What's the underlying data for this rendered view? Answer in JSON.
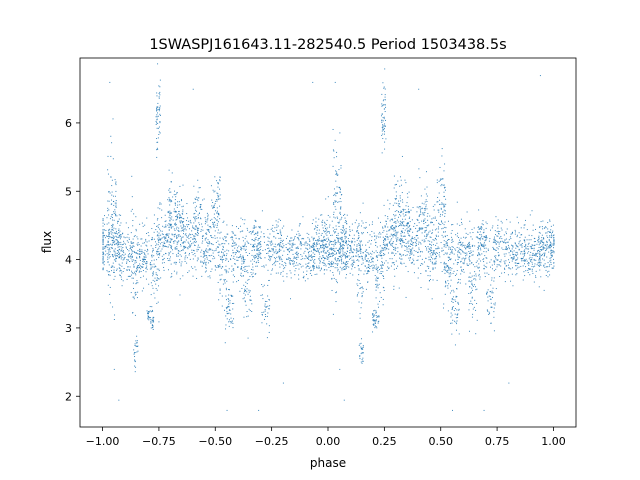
{
  "chart_data": {
    "type": "scatter",
    "title": "1SWASPJ161643.11-282540.5 Period 1503438.5s",
    "xlabel": "phase",
    "ylabel": "flux",
    "xlim": [
      -1.1,
      1.1
    ],
    "ylim": [
      1.55,
      6.95
    ],
    "xticks": [
      -1.0,
      -0.75,
      -0.5,
      -0.25,
      0.0,
      0.25,
      0.5,
      0.75,
      1.0
    ],
    "xtick_labels": [
      "−1.00",
      "−0.75",
      "−0.50",
      "−0.25",
      "0.00",
      "0.25",
      "0.50",
      "0.75",
      "1.00"
    ],
    "yticks": [
      2,
      3,
      4,
      5,
      6
    ],
    "ytick_labels": [
      "2",
      "3",
      "4",
      "5",
      "6"
    ],
    "grid": false,
    "marker_color": "#1f77b4",
    "series": [
      {
        "name": "",
        "note_periodic": true,
        "clusters": [
          {
            "phase": -1.0,
            "width": 0.03,
            "center": 4.2,
            "spread": 0.35,
            "n": 90
          },
          {
            "phase": -0.96,
            "width": 0.02,
            "center": 4.6,
            "spread": 0.9,
            "n": 110
          },
          {
            "phase": -0.94,
            "width": 0.02,
            "center": 4.3,
            "spread": 0.35,
            "n": 70
          },
          {
            "phase": -0.9,
            "width": 0.03,
            "center": 4.1,
            "spread": 0.3,
            "n": 60
          },
          {
            "phase": -0.86,
            "width": 0.015,
            "center": 4.0,
            "spread": 0.6,
            "n": 70
          },
          {
            "phase": -0.855,
            "width": 0.01,
            "center": 2.65,
            "spread": 0.15,
            "n": 25
          },
          {
            "phase": -0.82,
            "width": 0.02,
            "center": 4.0,
            "spread": 0.25,
            "n": 50
          },
          {
            "phase": -0.79,
            "width": 0.015,
            "center": 3.15,
            "spread": 0.15,
            "n": 40
          },
          {
            "phase": -0.77,
            "width": 0.02,
            "center": 3.8,
            "spread": 0.5,
            "n": 60
          },
          {
            "phase": -0.755,
            "width": 0.01,
            "center": 6.1,
            "spread": 0.45,
            "n": 55
          },
          {
            "phase": -0.73,
            "width": 0.03,
            "center": 4.4,
            "spread": 0.35,
            "n": 90
          },
          {
            "phase": -0.69,
            "width": 0.02,
            "center": 4.7,
            "spread": 0.5,
            "n": 70
          },
          {
            "phase": -0.66,
            "width": 0.02,
            "center": 4.5,
            "spread": 0.35,
            "n": 80
          },
          {
            "phase": -0.62,
            "width": 0.03,
            "center": 4.3,
            "spread": 0.35,
            "n": 70
          },
          {
            "phase": -0.58,
            "width": 0.02,
            "center": 4.6,
            "spread": 0.45,
            "n": 70
          },
          {
            "phase": -0.54,
            "width": 0.02,
            "center": 4.2,
            "spread": 0.45,
            "n": 70
          },
          {
            "phase": -0.5,
            "width": 0.02,
            "center": 4.7,
            "spread": 0.55,
            "n": 80
          },
          {
            "phase": -0.47,
            "width": 0.02,
            "center": 3.9,
            "spread": 0.4,
            "n": 60
          },
          {
            "phase": -0.44,
            "width": 0.02,
            "center": 3.3,
            "spread": 0.35,
            "n": 50
          },
          {
            "phase": -0.4,
            "width": 0.03,
            "center": 4.1,
            "spread": 0.35,
            "n": 70
          },
          {
            "phase": -0.36,
            "width": 0.02,
            "center": 3.5,
            "spread": 0.4,
            "n": 50
          },
          {
            "phase": -0.32,
            "width": 0.02,
            "center": 4.2,
            "spread": 0.35,
            "n": 70
          },
          {
            "phase": -0.28,
            "width": 0.02,
            "center": 3.4,
            "spread": 0.3,
            "n": 40
          },
          {
            "phase": -0.24,
            "width": 0.03,
            "center": 4.2,
            "spread": 0.3,
            "n": 60
          },
          {
            "phase": -0.18,
            "width": 0.04,
            "center": 4.1,
            "spread": 0.3,
            "n": 80
          },
          {
            "phase": -0.1,
            "width": 0.04,
            "center": 4.1,
            "spread": 0.3,
            "n": 80
          },
          {
            "phase": -0.04,
            "width": 0.03,
            "center": 4.2,
            "spread": 0.35,
            "n": 80
          },
          {
            "phase": 0.0,
            "width": 0.03,
            "center": 4.2,
            "spread": 0.35,
            "n": 90
          },
          {
            "phase": 0.04,
            "width": 0.02,
            "center": 4.6,
            "spread": 0.9,
            "n": 110
          },
          {
            "phase": 0.06,
            "width": 0.02,
            "center": 4.3,
            "spread": 0.35,
            "n": 70
          },
          {
            "phase": 0.1,
            "width": 0.03,
            "center": 4.1,
            "spread": 0.3,
            "n": 60
          },
          {
            "phase": 0.14,
            "width": 0.015,
            "center": 4.0,
            "spread": 0.6,
            "n": 70
          },
          {
            "phase": 0.145,
            "width": 0.01,
            "center": 2.65,
            "spread": 0.15,
            "n": 25
          },
          {
            "phase": 0.18,
            "width": 0.02,
            "center": 4.0,
            "spread": 0.25,
            "n": 50
          },
          {
            "phase": 0.21,
            "width": 0.015,
            "center": 3.15,
            "spread": 0.15,
            "n": 40
          },
          {
            "phase": 0.23,
            "width": 0.02,
            "center": 3.8,
            "spread": 0.5,
            "n": 60
          },
          {
            "phase": 0.245,
            "width": 0.01,
            "center": 6.1,
            "spread": 0.45,
            "n": 55
          },
          {
            "phase": 0.27,
            "width": 0.03,
            "center": 4.4,
            "spread": 0.35,
            "n": 90
          },
          {
            "phase": 0.31,
            "width": 0.02,
            "center": 4.7,
            "spread": 0.5,
            "n": 70
          },
          {
            "phase": 0.34,
            "width": 0.02,
            "center": 4.5,
            "spread": 0.35,
            "n": 80
          },
          {
            "phase": 0.38,
            "width": 0.03,
            "center": 4.3,
            "spread": 0.35,
            "n": 70
          },
          {
            "phase": 0.42,
            "width": 0.02,
            "center": 4.6,
            "spread": 0.45,
            "n": 70
          },
          {
            "phase": 0.46,
            "width": 0.02,
            "center": 4.2,
            "spread": 0.45,
            "n": 70
          },
          {
            "phase": 0.5,
            "width": 0.02,
            "center": 4.7,
            "spread": 0.55,
            "n": 80
          },
          {
            "phase": 0.53,
            "width": 0.02,
            "center": 3.9,
            "spread": 0.4,
            "n": 60
          },
          {
            "phase": 0.56,
            "width": 0.02,
            "center": 3.3,
            "spread": 0.35,
            "n": 50
          },
          {
            "phase": 0.6,
            "width": 0.03,
            "center": 4.1,
            "spread": 0.35,
            "n": 70
          },
          {
            "phase": 0.64,
            "width": 0.02,
            "center": 3.5,
            "spread": 0.4,
            "n": 50
          },
          {
            "phase": 0.68,
            "width": 0.02,
            "center": 4.2,
            "spread": 0.35,
            "n": 70
          },
          {
            "phase": 0.72,
            "width": 0.02,
            "center": 3.4,
            "spread": 0.3,
            "n": 40
          },
          {
            "phase": 0.76,
            "width": 0.03,
            "center": 4.2,
            "spread": 0.3,
            "n": 60
          },
          {
            "phase": 0.82,
            "width": 0.04,
            "center": 4.1,
            "spread": 0.3,
            "n": 80
          },
          {
            "phase": 0.9,
            "width": 0.04,
            "center": 4.1,
            "spread": 0.3,
            "n": 80
          },
          {
            "phase": 0.96,
            "width": 0.03,
            "center": 4.2,
            "spread": 0.35,
            "n": 80
          },
          {
            "phase": 1.0,
            "width": 0.02,
            "center": 4.2,
            "spread": 0.3,
            "n": 50
          }
        ],
        "outliers": [
          {
            "phase": -0.97,
            "flux": 6.6
          },
          {
            "phase": -0.95,
            "flux": 2.4
          },
          {
            "phase": -0.93,
            "flux": 1.95
          },
          {
            "phase": -0.6,
            "flux": 6.5
          },
          {
            "phase": -0.45,
            "flux": 1.8
          },
          {
            "phase": -0.31,
            "flux": 1.8
          },
          {
            "phase": -0.07,
            "flux": 6.6
          },
          {
            "phase": 0.03,
            "flux": 6.6
          },
          {
            "phase": 0.05,
            "flux": 2.4
          },
          {
            "phase": 0.07,
            "flux": 1.95
          },
          {
            "phase": 0.4,
            "flux": 6.5
          },
          {
            "phase": 0.55,
            "flux": 1.8
          },
          {
            "phase": 0.69,
            "flux": 1.8
          },
          {
            "phase": 0.94,
            "flux": 6.7
          },
          {
            "phase": -0.2,
            "flux": 2.2
          },
          {
            "phase": 0.8,
            "flux": 2.2
          }
        ]
      }
    ]
  }
}
